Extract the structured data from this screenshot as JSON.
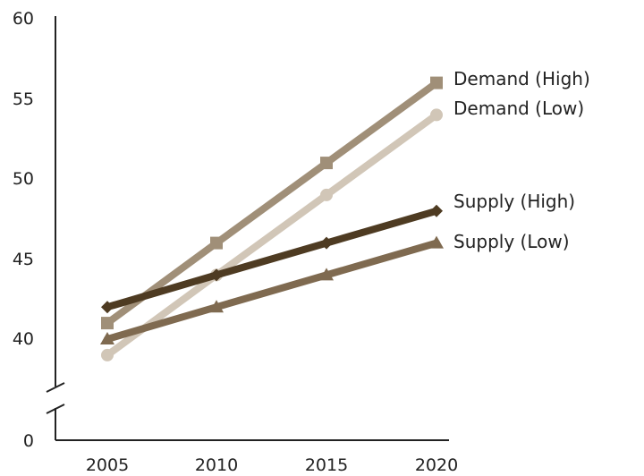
{
  "chart_data": {
    "type": "line",
    "title": "",
    "xlabel": "",
    "ylabel": "",
    "categories": [
      "2005",
      "2010",
      "2015",
      "2020"
    ],
    "y_tick_labels": [
      "0",
      "40",
      "45",
      "50",
      "55",
      "60"
    ],
    "ylim": [
      38,
      60
    ],
    "axis_break": true,
    "grid": false,
    "series": [
      {
        "name": "Demand (High)",
        "values": [
          41,
          46,
          51,
          56
        ],
        "color": "#a08f78",
        "marker": "square"
      },
      {
        "name": "Demand (Low)",
        "values": [
          39,
          44,
          49,
          54
        ],
        "color": "#d1c6b7",
        "marker": "circle"
      },
      {
        "name": "Supply (High)",
        "values": [
          42,
          44,
          46,
          48
        ],
        "color": "#4e3b22",
        "marker": "diamond"
      },
      {
        "name": "Supply (Low)",
        "values": [
          40,
          42,
          44,
          46
        ],
        "color": "#7f6a50",
        "marker": "triangle"
      }
    ]
  }
}
